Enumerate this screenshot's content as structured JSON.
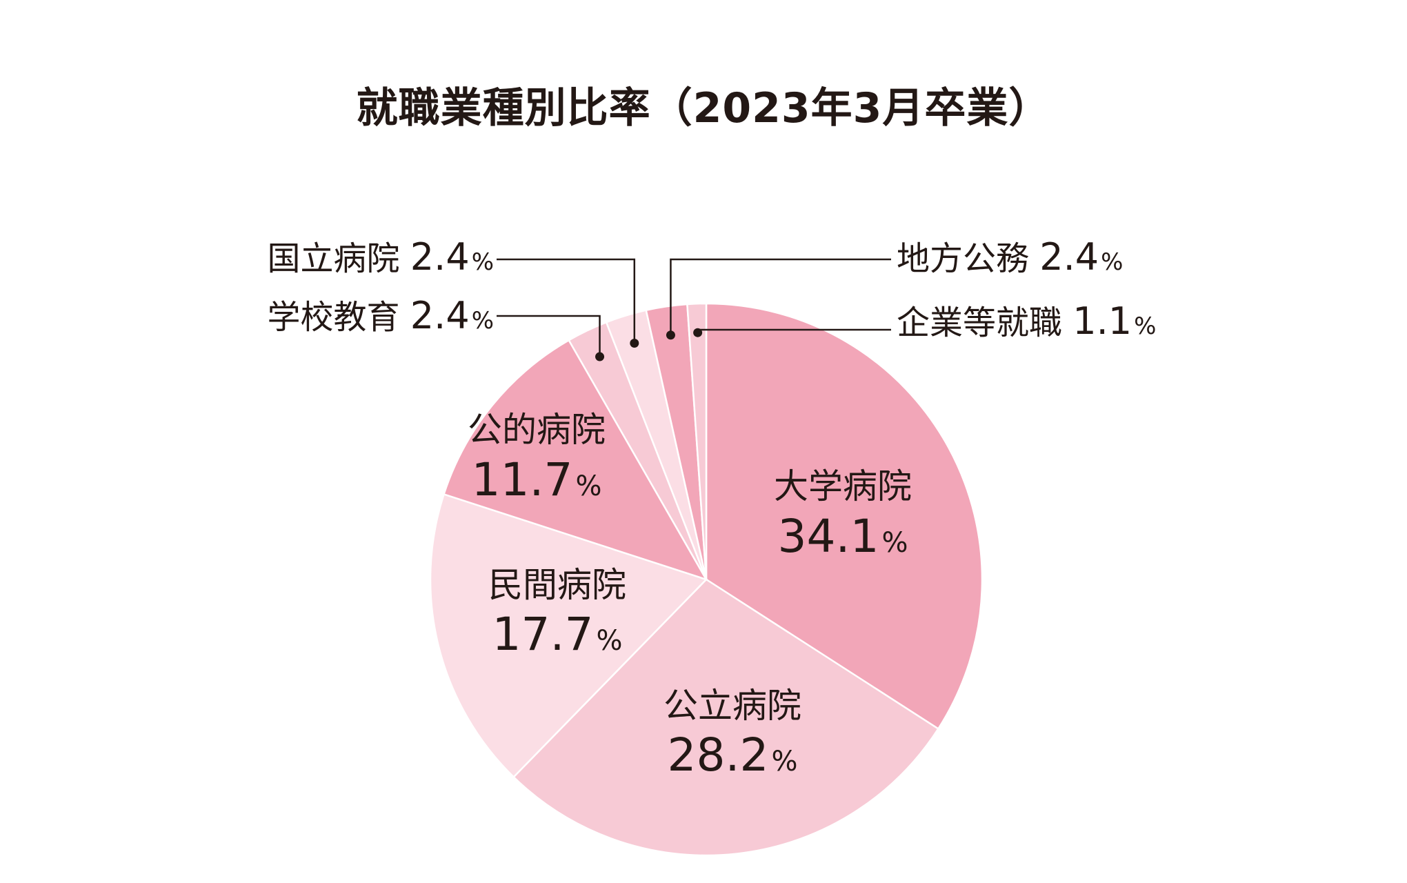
{
  "chart_data": {
    "type": "pie",
    "title": "就職業種別比率（2023年3月卒業）",
    "unit": "%",
    "slices": [
      {
        "label": "大学病院",
        "value": 34.1,
        "color": "#f2a6b8",
        "placement": "inside"
      },
      {
        "label": "公立病院",
        "value": 28.2,
        "color": "#f7cad5",
        "placement": "inside"
      },
      {
        "label": "民間病院",
        "value": 17.7,
        "color": "#fbdee5",
        "placement": "inside"
      },
      {
        "label": "公的病院",
        "value": 11.7,
        "color": "#f2a6b8",
        "placement": "inside"
      },
      {
        "label": "学校教育",
        "value": 2.4,
        "color": "#f7cad5",
        "placement": "callout-left"
      },
      {
        "label": "国立病院",
        "value": 2.4,
        "color": "#fbdee5",
        "placement": "callout-left"
      },
      {
        "label": "地方公務",
        "value": 2.4,
        "color": "#f2a6b8",
        "placement": "callout-right"
      },
      {
        "label": "企業等就職",
        "value": 1.1,
        "color": "#f7cad5",
        "placement": "callout-right"
      }
    ],
    "start_angle": "12 o'clock",
    "direction": "clockwise",
    "legend": "none"
  }
}
